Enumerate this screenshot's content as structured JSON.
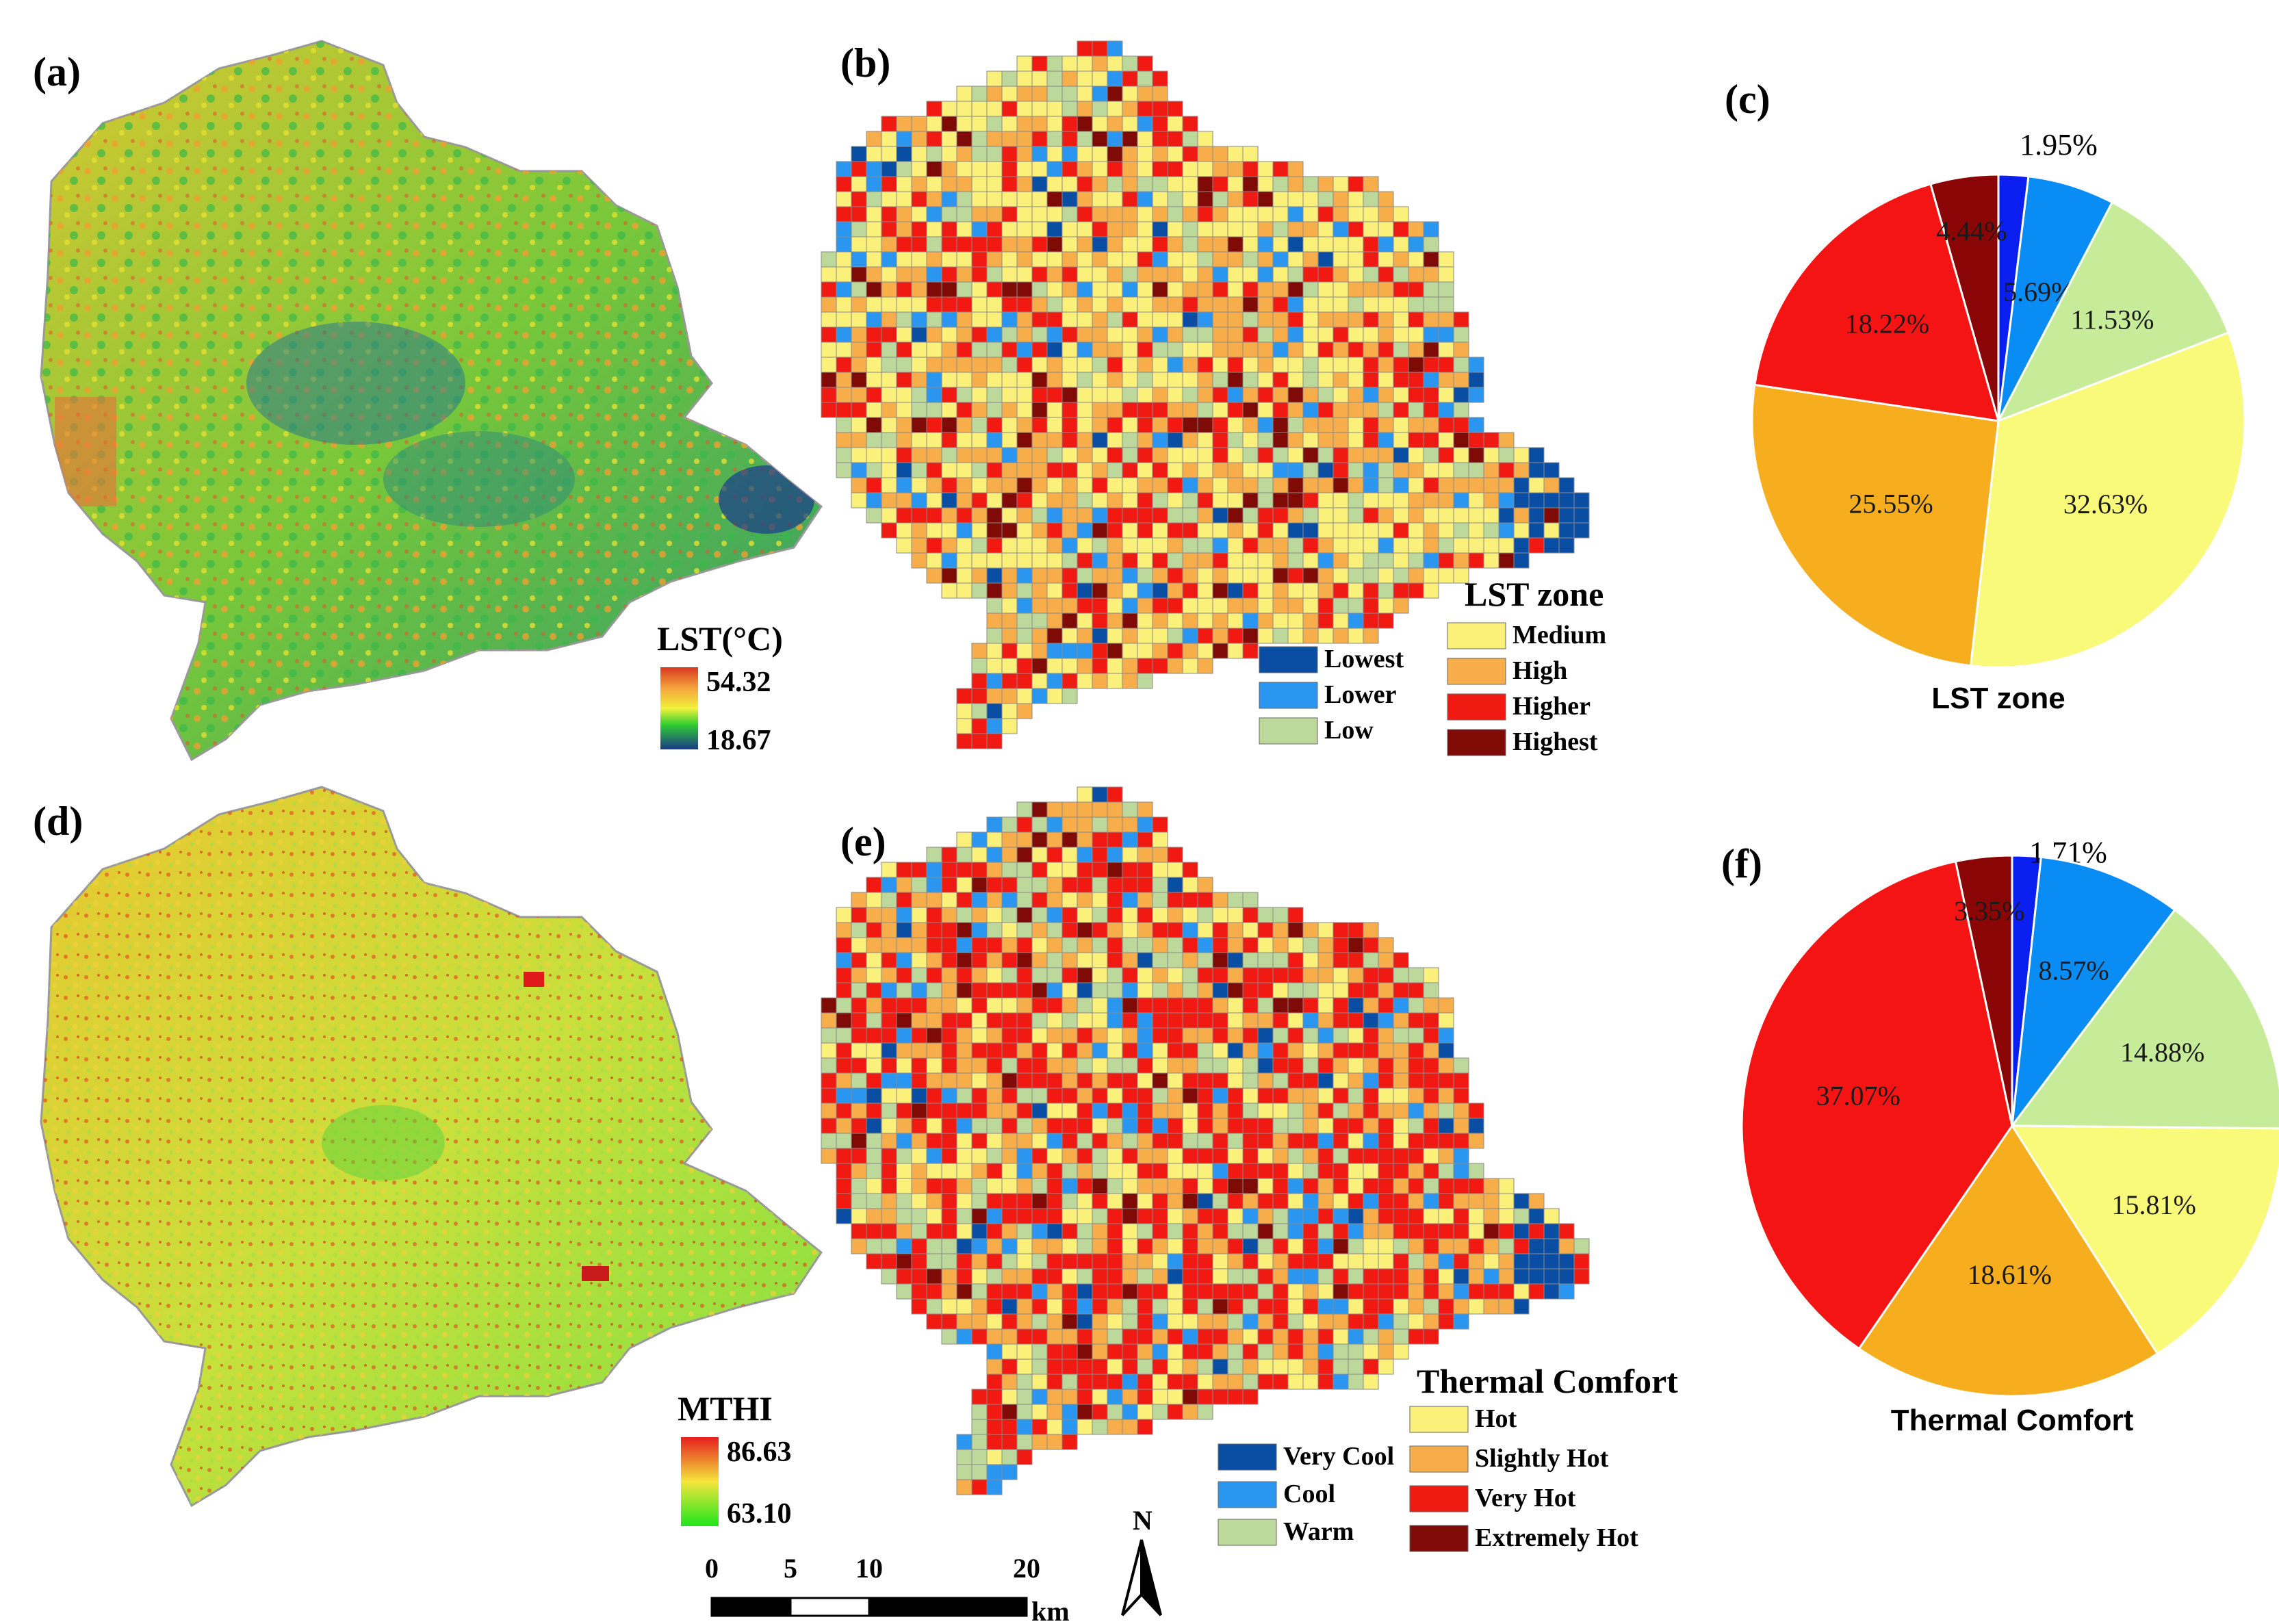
{
  "panels": {
    "a": {
      "label": "(a)",
      "ramp_title": "LST(°C)",
      "ramp_max": "54.32",
      "ramp_min": "18.67"
    },
    "b": {
      "label": "(b)",
      "legend_title": "LST zone",
      "legend": [
        {
          "name": "Lowest",
          "color": "#0a4ea3"
        },
        {
          "name": "Lower",
          "color": "#2a96f0"
        },
        {
          "name": "Low",
          "color": "#bcd89a"
        },
        {
          "name": "Medium",
          "color": "#fbf07a"
        },
        {
          "name": "High",
          "color": "#f7ad4a"
        },
        {
          "name": "Higher",
          "color": "#f01a12"
        },
        {
          "name": "Highest",
          "color": "#7f0a06"
        }
      ]
    },
    "c": {
      "label": "(c)"
    },
    "d": {
      "label": "(d)",
      "ramp_title": "MTHI",
      "ramp_max": "86.63",
      "ramp_min": "63.10"
    },
    "e": {
      "label": "(e)",
      "legend_title": "Thermal Comfort",
      "legend": [
        {
          "name": "Very Cool",
          "color": "#0a4ea3"
        },
        {
          "name": "Cool",
          "color": "#2a96f0"
        },
        {
          "name": "Warm",
          "color": "#bcd89a"
        },
        {
          "name": "Hot",
          "color": "#fbf07a"
        },
        {
          "name": "Slightly Hot",
          "color": "#f7ad4a"
        },
        {
          "name": "Very Hot",
          "color": "#f01a12"
        },
        {
          "name": "Extremely Hot",
          "color": "#7f0a06"
        }
      ]
    },
    "f": {
      "label": "(f)"
    }
  },
  "chart_data": [
    {
      "type": "pie",
      "title": "LST zone",
      "categories": [
        "Lowest",
        "Lower",
        "Low",
        "Medium",
        "High",
        "Higher",
        "Highest"
      ],
      "values": [
        1.95,
        5.69,
        11.53,
        32.63,
        25.55,
        18.22,
        4.44
      ],
      "labels": [
        "1.95%",
        "5.69%",
        "11.53%",
        "32.63%",
        "25.55%",
        "18.22%",
        "4.44%"
      ],
      "colors": [
        "#0a1ef0",
        "#0a8cf5",
        "#c6ec9a",
        "#fafa7a",
        "#f6ae1e",
        "#f51414",
        "#8a0505"
      ]
    },
    {
      "type": "pie",
      "title": "Thermal Comfort",
      "categories": [
        "Very Cool",
        "Cool",
        "Warm",
        "Hot",
        "Slightly Hot",
        "Very Hot",
        "Extremely Hot"
      ],
      "values": [
        1.71,
        8.57,
        14.88,
        15.81,
        18.61,
        37.07,
        3.35
      ],
      "labels": [
        "1.71%",
        "8.57%",
        "14.88%",
        "15.81%",
        "18.61%",
        "37.07%",
        "3.35%"
      ],
      "colors": [
        "#0a1ef0",
        "#0a8cf5",
        "#c6ec9a",
        "#fafa7a",
        "#f6ae1e",
        "#f51414",
        "#8a0505"
      ]
    }
  ],
  "scale_bar": {
    "ticks": [
      "0",
      "5",
      "10",
      "20"
    ],
    "unit": "km",
    "values_km": [
      0,
      5,
      10,
      20
    ]
  },
  "north_arrow": {
    "label": "N"
  }
}
